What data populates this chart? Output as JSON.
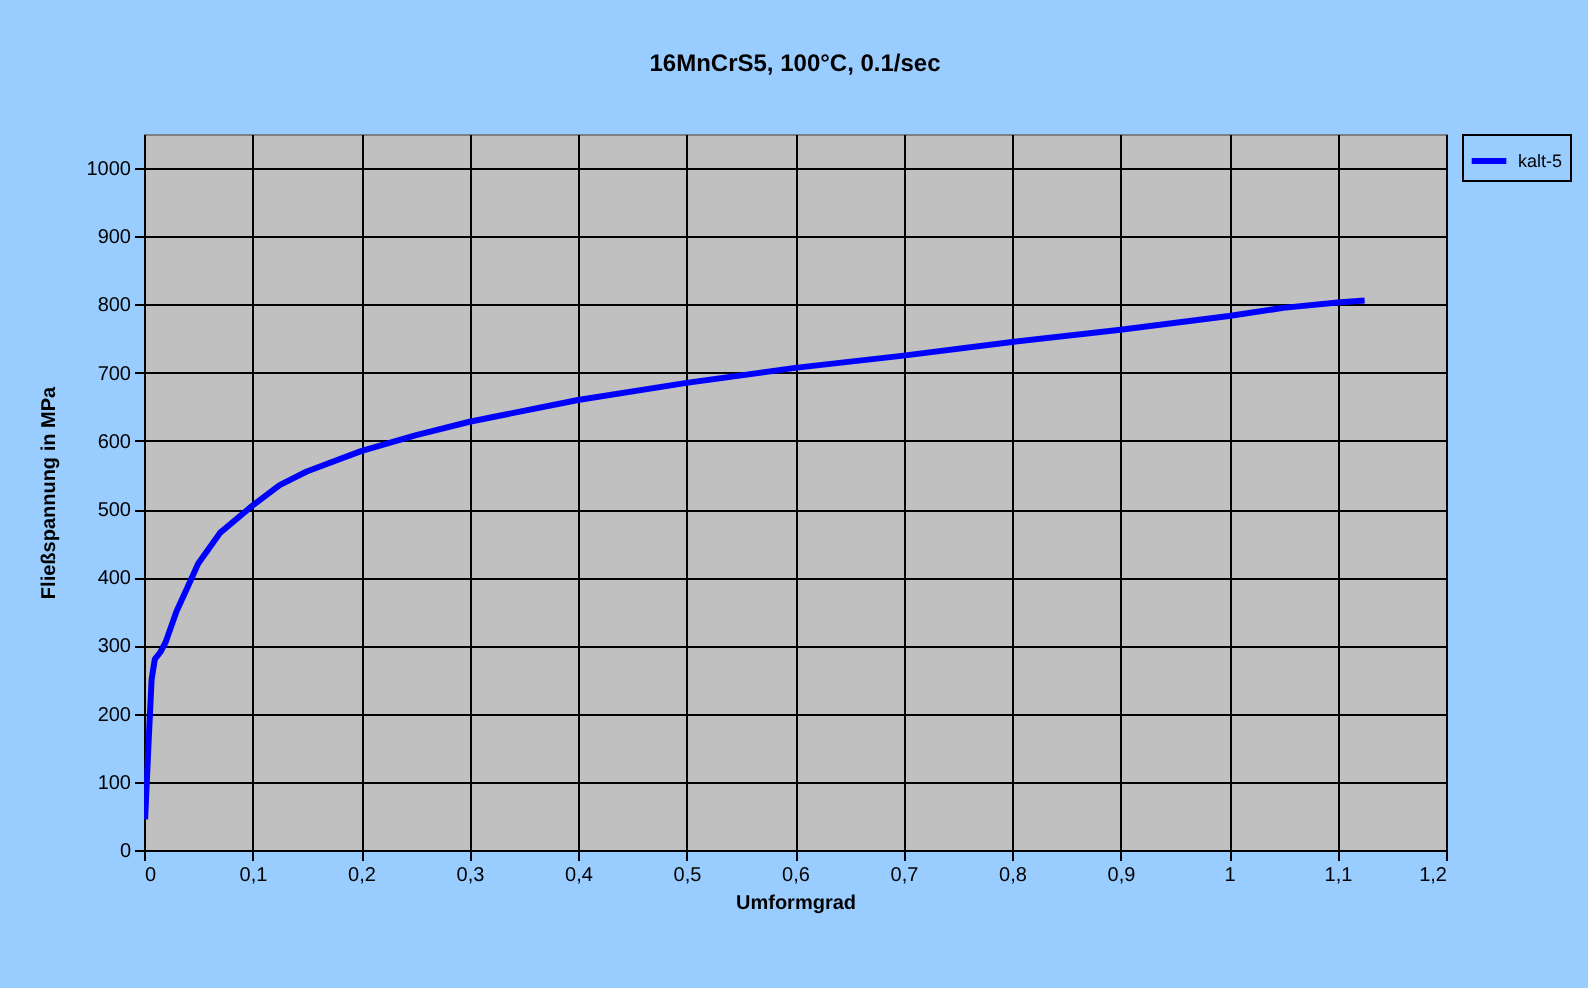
{
  "chart_data": {
    "type": "line",
    "title": "16MnCrS5,  100°C,  0.1/sec",
    "xlabel": "Umformgrad",
    "ylabel": "Fließspannung in MPa",
    "xlim": [
      0,
      1.2
    ],
    "xticks": [
      0,
      {
        "value": 0.1,
        "label": "0,1"
      },
      {
        "value": 0.2,
        "label": "0,2"
      },
      {
        "value": 0.3,
        "label": "0,3"
      },
      {
        "value": 0.4,
        "label": "0,4"
      },
      {
        "value": 0.5,
        "label": "0,5"
      },
      {
        "value": 0.6,
        "label": "0,6"
      },
      {
        "value": 0.7,
        "label": "0,7"
      },
      {
        "value": 0.8,
        "label": "0,8"
      },
      {
        "value": 0.9,
        "label": "0,9"
      },
      1,
      {
        "value": 1.1,
        "label": "1,1"
      },
      {
        "value": 1.2,
        "label": "1,2"
      }
    ],
    "ylim": [
      0,
      1050
    ],
    "yticks": [
      0,
      100,
      200,
      300,
      400,
      500,
      600,
      700,
      800,
      900,
      1000
    ],
    "grid": true,
    "legend": "right",
    "line_style": "solid",
    "x": [
      0.001,
      0.004,
      0.007,
      0.01,
      0.015,
      0.02,
      0.03,
      0.04,
      0.05,
      0.07,
      0.1,
      0.125,
      0.15,
      0.2,
      0.25,
      0.3,
      0.4,
      0.5,
      0.6,
      0.7,
      0.8,
      0.9,
      1.0,
      1.05,
      1.1,
      1.125
    ],
    "series": [
      {
        "name": "kalt-5",
        "color": "#0000ff",
        "values": [
          45,
          150,
          250,
          280,
          290,
          305,
          350,
          385,
          420,
          465,
          505,
          535,
          555,
          585,
          608,
          628,
          660,
          685,
          707,
          725,
          745,
          763,
          783,
          795,
          803,
          806
        ]
      }
    ]
  }
}
